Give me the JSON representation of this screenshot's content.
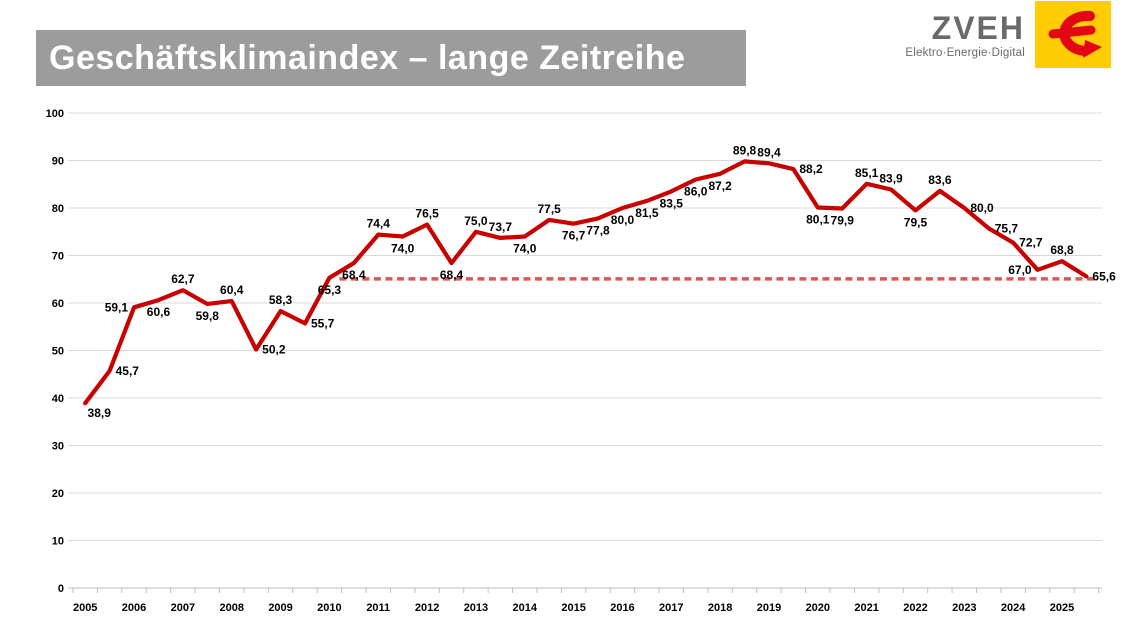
{
  "header": {
    "title": "Geschäftsklimaindex – lange Zeitreihe",
    "logo": {
      "brand": "ZVEH",
      "tagline": "Elektro·Energie·Digital"
    }
  },
  "colors": {
    "line_red": "#C80000",
    "dashed_red": "#E05555",
    "title_bar_bg": "#9C9C9C",
    "title_text": "#FFFFFF",
    "logo_gray": "#6A6A6A",
    "logo_yellow": "#FFCC05",
    "logo_red": "#E30613",
    "grid": "#D9D9D9",
    "axis": "#BFBFBF",
    "label_text": "#000000"
  },
  "chart_data": {
    "type": "line",
    "title": "Geschäftsklimaindex – lange Zeitreihe",
    "x_year_labels": [
      "2005",
      "2006",
      "2007",
      "2008",
      "2009",
      "2010",
      "2011",
      "2012",
      "2013",
      "2014",
      "2015",
      "2016",
      "2017",
      "2018",
      "2019",
      "2020",
      "2021",
      "2022",
      "2023",
      "2024",
      "2025"
    ],
    "points_per_year": 2,
    "series": [
      {
        "name": "Geschäftsklimaindex",
        "values": [
          38.9,
          45.7,
          59.1,
          60.6,
          62.7,
          59.8,
          60.4,
          50.2,
          58.3,
          55.7,
          65.3,
          68.4,
          74.4,
          74.0,
          76.5,
          68.4,
          75.0,
          73.7,
          74.0,
          77.5,
          76.7,
          77.8,
          80.0,
          81.5,
          83.5,
          86.0,
          87.2,
          89.8,
          89.4,
          88.2,
          80.1,
          79.9,
          85.1,
          83.9,
          79.5,
          83.6,
          80.0,
          75.7,
          72.7,
          67.0,
          68.8,
          65.6
        ]
      }
    ],
    "decimal_separator": ",",
    "ylim": [
      0,
      100
    ],
    "ytick_step": 10,
    "grid": "horizontal",
    "legend": "none",
    "reference_line": {
      "value": 65.3,
      "style": "dashed",
      "start_index": 10,
      "end_index": 41
    },
    "label_sides": [
      "belowright",
      "right",
      "left",
      "below",
      "above",
      "below",
      "above",
      "right",
      "above",
      "right",
      "below",
      "below",
      "above",
      "below",
      "above",
      "below",
      "above",
      "above",
      "below",
      "above",
      "below",
      "below",
      "below",
      "below",
      "below",
      "below",
      "below",
      "above",
      "above",
      "right",
      "below",
      "below",
      "above",
      "above",
      "below",
      "above",
      "right",
      "right",
      "right",
      "left",
      "above",
      "right"
    ]
  }
}
